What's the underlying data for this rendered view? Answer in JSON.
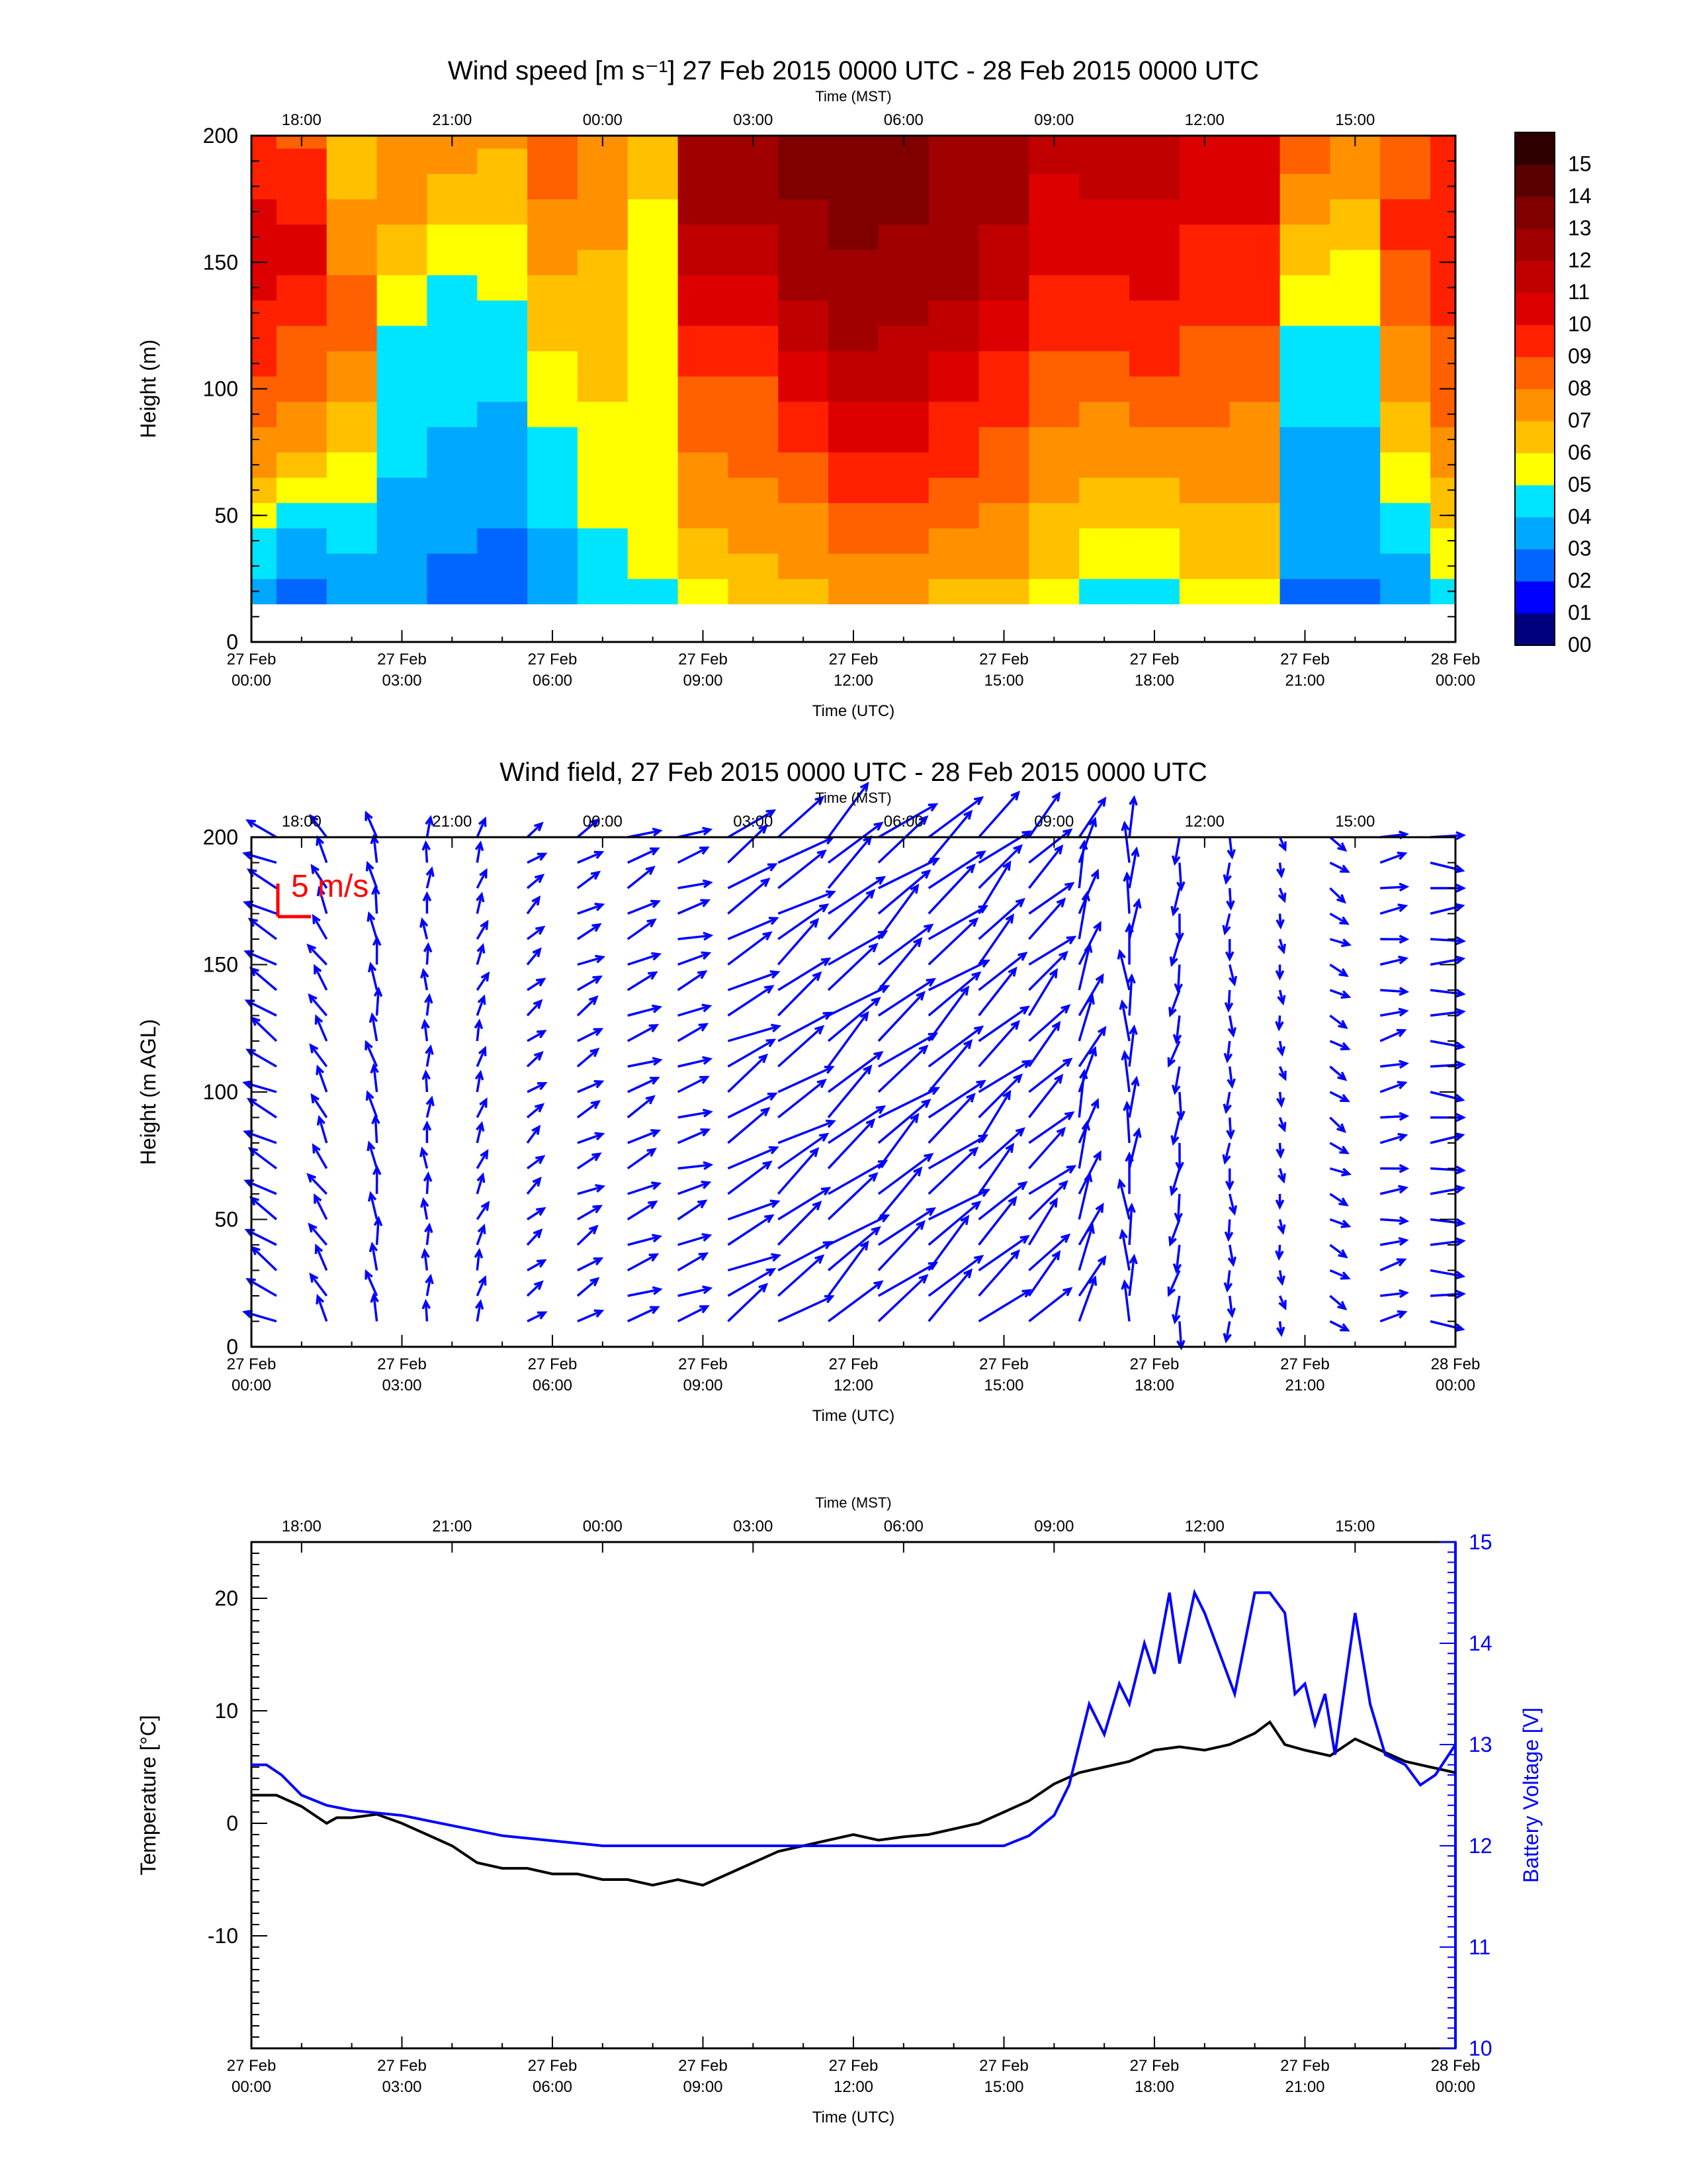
{
  "chart_data": [
    {
      "type": "heatmap",
      "title": "Wind speed [m s⁻¹] 27 Feb 2015 0000 UTC - 28 Feb 2015 0000 UTC",
      "xlabel_top": "Time (MST)",
      "xlabel": "Time (UTC)",
      "ylabel": "Height (m)",
      "ylim": [
        0,
        200
      ],
      "y_ticks": [
        "0",
        "50",
        "100",
        "150",
        "200"
      ],
      "x_ticks_utc": [
        "27 Feb\n00:00",
        "27 Feb\n03:00",
        "27 Feb\n06:00",
        "27 Feb\n09:00",
        "27 Feb\n12:00",
        "27 Feb\n15:00",
        "27 Feb\n18:00",
        "27 Feb\n21:00",
        "28 Feb\n00:00"
      ],
      "x_ticks_mst": [
        "18:00",
        "21:00",
        "00:00",
        "03:00",
        "06:00",
        "09:00",
        "12:00",
        "15:00"
      ],
      "colorbar": {
        "labels": [
          "00",
          "01",
          "02",
          "03",
          "04",
          "05",
          "06",
          "07",
          "08",
          "09",
          "10",
          "11",
          "12",
          "13",
          "14",
          "15"
        ],
        "colors": [
          "#00007f",
          "#0000ff",
          "#0066ff",
          "#00a8ff",
          "#00e5ff",
          "#ffff00",
          "#ffc000",
          "#ff9000",
          "#ff6000",
          "#ff2000",
          "#dd0000",
          "#c00000",
          "#a00000",
          "#800000",
          "#5a0000",
          "#2e0000"
        ]
      },
      "hours": [
        0,
        1,
        2,
        3,
        4,
        5,
        6,
        7,
        8,
        9,
        10,
        11,
        12,
        13,
        14,
        15,
        16,
        17,
        18,
        19,
        20,
        21,
        22,
        23,
        24
      ],
      "heights": [
        10,
        20,
        30,
        40,
        50,
        60,
        70,
        80,
        90,
        100,
        110,
        120,
        130,
        140,
        150,
        160,
        170,
        180,
        190,
        200
      ],
      "speed_profiles": [
        [
          3,
          3.5,
          4,
          4.5,
          5.5,
          6.5,
          7,
          7.5,
          8,
          8.5,
          9,
          9,
          9.5,
          10,
          10,
          10.5,
          10,
          9.5,
          9,
          9
        ],
        [
          2,
          2.5,
          3,
          3.5,
          4,
          5,
          6,
          7,
          7.5,
          8,
          8.5,
          8.5,
          9,
          9.5,
          10,
          10,
          9.5,
          9,
          9,
          8.5
        ],
        [
          3,
          3,
          3.5,
          4,
          4.5,
          5,
          5,
          6,
          6.5,
          7,
          7.5,
          8,
          8,
          8,
          7.5,
          7,
          7,
          6.5,
          6,
          6
        ],
        [
          3,
          3,
          3,
          3.5,
          3.5,
          3.5,
          4,
          4,
          4,
          4,
          4.5,
          4.5,
          5,
          5.5,
          6,
          6.5,
          7,
          7,
          7,
          7
        ],
        [
          2,
          2.5,
          2.5,
          3,
          3,
          3.5,
          3.5,
          3.5,
          4,
          4,
          4,
          4,
          4,
          4.5,
          5,
          5.5,
          6,
          6.5,
          7,
          7
        ],
        [
          2,
          2,
          2.5,
          2.5,
          3,
          3,
          3.5,
          3.5,
          3.5,
          4,
          4,
          4.5,
          4.5,
          5,
          5,
          5.5,
          6,
          6.5,
          6.5,
          7
        ],
        [
          3,
          3,
          3.5,
          3.5,
          4,
          4,
          4.5,
          4.5,
          5,
          5,
          5.5,
          6,
          6,
          6.5,
          7,
          7,
          7.5,
          8,
          8,
          8
        ],
        [
          4,
          4,
          4.5,
          4.5,
          5,
          5,
          5,
          5.5,
          5.5,
          6,
          6,
          6,
          6,
          6.5,
          6.5,
          7,
          7,
          7,
          7,
          7
        ],
        [
          4,
          4.5,
          5,
          5,
          5.5,
          5.5,
          5.5,
          5.5,
          5.5,
          5.5,
          5.5,
          5.5,
          5.5,
          5.5,
          5.5,
          5.5,
          5.5,
          6,
          6,
          6
        ],
        [
          5,
          5.5,
          6,
          6.5,
          7,
          7.5,
          7.5,
          8,
          8,
          8.5,
          9,
          9.5,
          10,
          10.5,
          11,
          11.5,
          12,
          12,
          12.5,
          12.5
        ],
        [
          6,
          6,
          6.5,
          7,
          7,
          7.5,
          8,
          8,
          8.5,
          8.5,
          9,
          9.5,
          10,
          10.5,
          11,
          11.5,
          12,
          12,
          12.5,
          12.5
        ],
        [
          6,
          6.5,
          7,
          7,
          7.5,
          8,
          8.5,
          9,
          9.5,
          10,
          10.5,
          11,
          11.5,
          12,
          12,
          12.5,
          12.5,
          13,
          13,
          13
        ],
        [
          6.5,
          7,
          7.5,
          8,
          8.5,
          9,
          9.5,
          10,
          10.5,
          11,
          11.5,
          12,
          12,
          12.5,
          12.5,
          13,
          13,
          13,
          13,
          13
        ],
        [
          6.5,
          7,
          7.5,
          8,
          8.5,
          9,
          9.5,
          10,
          10.5,
          11,
          11.5,
          11.5,
          12,
          12,
          12.5,
          12.5,
          13,
          13,
          13,
          13
        ],
        [
          6,
          6.5,
          7,
          7.5,
          8,
          8.5,
          9,
          9,
          9.5,
          10,
          10.5,
          11,
          11.5,
          12,
          12,
          12,
          12.5,
          12.5,
          12.5,
          12.5
        ],
        [
          6,
          6.5,
          7,
          7,
          7.5,
          8,
          8,
          8.5,
          9,
          9,
          9.5,
          10,
          10.5,
          11,
          11,
          11.5,
          12,
          12,
          12,
          12
        ],
        [
          5,
          5.5,
          6,
          6.5,
          6.5,
          7,
          7,
          7.5,
          8,
          8,
          8.5,
          9,
          9,
          9.5,
          10,
          10,
          10.5,
          10.5,
          11,
          11
        ],
        [
          4,
          4.5,
          5,
          5.5,
          6,
          6.5,
          7,
          7,
          7.5,
          8,
          8.5,
          9,
          9,
          9.5,
          10,
          10,
          10.5,
          11,
          11,
          11
        ],
        [
          4,
          4.5,
          5,
          5.5,
          6,
          6.5,
          7,
          7.5,
          8,
          8.5,
          9,
          9,
          9.5,
          10,
          10,
          10.5,
          10.5,
          11,
          11,
          11
        ],
        [
          5,
          5.5,
          6,
          6,
          6.5,
          7,
          7,
          7.5,
          8,
          8,
          8.5,
          8.5,
          9,
          9,
          9.5,
          9.5,
          10,
          10,
          10,
          10
        ],
        [
          5,
          5.5,
          6,
          6,
          6.5,
          7,
          7,
          7.5,
          7.5,
          8,
          8.5,
          8.5,
          9,
          9,
          9.5,
          9.5,
          10,
          10,
          10,
          10
        ],
        [
          2,
          2.5,
          3,
          3,
          3,
          3.5,
          3.5,
          3.5,
          4,
          4,
          4,
          4.5,
          5,
          5.5,
          6,
          6.5,
          7,
          7.5,
          8,
          8
        ],
        [
          2,
          2.5,
          3,
          3,
          3,
          3.5,
          3.5,
          3.5,
          4,
          4,
          4,
          4.5,
          5,
          5,
          5.5,
          6,
          6.5,
          7,
          7,
          7
        ],
        [
          3,
          3,
          3.5,
          4,
          4.5,
          5,
          5.5,
          6,
          6.5,
          7,
          7.5,
          7.5,
          8,
          8.5,
          8.5,
          9,
          9,
          8.5,
          8.5,
          8
        ],
        [
          4,
          4.5,
          5,
          5.5,
          6,
          6.5,
          7,
          7.5,
          8,
          8,
          8.5,
          8.5,
          9,
          9,
          9,
          9,
          9,
          9,
          9,
          9
        ]
      ]
    },
    {
      "type": "vector_field",
      "title": "Wind field, 27 Feb 2015 0000 UTC - 28 Feb 2015 0000 UTC",
      "xlabel_top": "Time (MST)",
      "xlabel": "Time (UTC)",
      "ylabel": "Height (m AGL)",
      "ylim": [
        0,
        200
      ],
      "y_ticks": [
        "0",
        "50",
        "100",
        "150",
        "200"
      ],
      "x_ticks_utc": [
        "27 Feb\n00:00",
        "27 Feb\n03:00",
        "27 Feb\n06:00",
        "27 Feb\n09:00",
        "27 Feb\n12:00",
        "27 Feb\n15:00",
        "27 Feb\n18:00",
        "27 Feb\n21:00",
        "28 Feb\n00:00"
      ],
      "x_ticks_mst": [
        "18:00",
        "21:00",
        "00:00",
        "03:00",
        "06:00",
        "09:00",
        "12:00",
        "15:00"
      ],
      "reference_vector_label": "5 m/s",
      "arrow_color": "#0000ff",
      "reference_color": "#ff0000",
      "hours": [
        0.5,
        1.5,
        2.5,
        3.5,
        4.5,
        5.5,
        6.5,
        7.5,
        8.5,
        9.5,
        10.5,
        11.5,
        12.5,
        13.5,
        14.5,
        15.5,
        16.5,
        17.5,
        18.5,
        19.5,
        20.5,
        21.5,
        22.5,
        23.5
      ],
      "direction_deg": [
        120,
        150,
        170,
        180,
        200,
        230,
        240,
        245,
        250,
        240,
        235,
        230,
        230,
        230,
        225,
        225,
        200,
        180,
        10,
        0,
        350,
        300,
        260,
        270
      ],
      "speed_ms": [
        5,
        4,
        4,
        3,
        3,
        3,
        4,
        5,
        5,
        8,
        9,
        10,
        10,
        10,
        9,
        8,
        7,
        6,
        4,
        3,
        2,
        3,
        4,
        5
      ]
    },
    {
      "type": "line",
      "title": "",
      "xlabel_top": "Time (MST)",
      "xlabel": "Time (UTC)",
      "ylabel": "Temperature [°C]",
      "ylabel_right": "Battery Voltage [V]",
      "ylim": [
        -20,
        25
      ],
      "ylim_right": [
        10,
        15
      ],
      "y_ticks": [
        "-10",
        "0",
        "10",
        "20"
      ],
      "y_ticks_right": [
        "10",
        "11",
        "12",
        "13",
        "14",
        "15"
      ],
      "x_ticks_utc": [
        "27 Feb\n00:00",
        "27 Feb\n03:00",
        "27 Feb\n06:00",
        "27 Feb\n09:00",
        "27 Feb\n12:00",
        "27 Feb\n15:00",
        "27 Feb\n18:00",
        "27 Feb\n21:00",
        "28 Feb\n00:00"
      ],
      "x_ticks_mst": [
        "18:00",
        "21:00",
        "00:00",
        "03:00",
        "06:00",
        "09:00",
        "12:00",
        "15:00"
      ],
      "series": [
        {
          "color": "#000000",
          "x": [
            0,
            0.5,
            1,
            1.5,
            1.7,
            2,
            2.5,
            3,
            3.5,
            4,
            4.5,
            5,
            5.5,
            6,
            6.5,
            7,
            7.5,
            8,
            8.5,
            9,
            9.5,
            10,
            10.5,
            11,
            11.5,
            12,
            12.5,
            13,
            13.5,
            14,
            14.5,
            15,
            15.5,
            16,
            16.5,
            17,
            17.5,
            18,
            18.5,
            19,
            19.5,
            20,
            20.3,
            20.6,
            21,
            21.5,
            22,
            22.5,
            23,
            23.5,
            24
          ],
          "y": [
            2.5,
            2.5,
            1.5,
            0,
            0.5,
            0.5,
            0.8,
            0,
            -1,
            -2,
            -3.5,
            -4,
            -4,
            -4.5,
            -4.5,
            -5,
            -5,
            -5.5,
            -5,
            -5.5,
            -4.5,
            -3.5,
            -2.5,
            -2,
            -1.5,
            -1,
            -1.5,
            -1.2,
            -1,
            -0.5,
            0,
            1,
            2,
            3.5,
            4.5,
            5,
            5.5,
            6.5,
            6.8,
            6.5,
            7,
            8,
            9,
            7,
            6.5,
            6,
            7.5,
            6.5,
            5.5,
            5,
            4.5
          ]
        },
        {
          "color": "#0000ff",
          "x": [
            0,
            0.3,
            0.6,
            1,
            1.5,
            2,
            3,
            4,
            5,
            6,
            7,
            8,
            9,
            10,
            11,
            12,
            13,
            14,
            15,
            15.5,
            16,
            16.3,
            16.5,
            16.7,
            17,
            17.3,
            17.5,
            17.8,
            18,
            18.3,
            18.5,
            18.8,
            19,
            19.3,
            19.6,
            20,
            20.3,
            20.6,
            20.8,
            21,
            21.2,
            21.4,
            21.6,
            21.8,
            22,
            22.3,
            22.6,
            23,
            23.3,
            23.6,
            24
          ],
          "y": [
            12.8,
            12.8,
            12.7,
            12.5,
            12.4,
            12.35,
            12.3,
            12.2,
            12.1,
            12.05,
            12,
            12,
            12,
            12,
            12,
            12,
            12,
            12,
            12,
            12.1,
            12.3,
            12.6,
            13,
            13.4,
            13.1,
            13.6,
            13.4,
            14,
            13.7,
            14.5,
            13.8,
            14.5,
            14.3,
            13.9,
            13.5,
            14.5,
            14.5,
            14.3,
            13.5,
            13.6,
            13.2,
            13.5,
            12.9,
            13.6,
            14.3,
            13.4,
            12.9,
            12.8,
            12.6,
            12.7,
            13
          ]
        }
      ]
    }
  ]
}
